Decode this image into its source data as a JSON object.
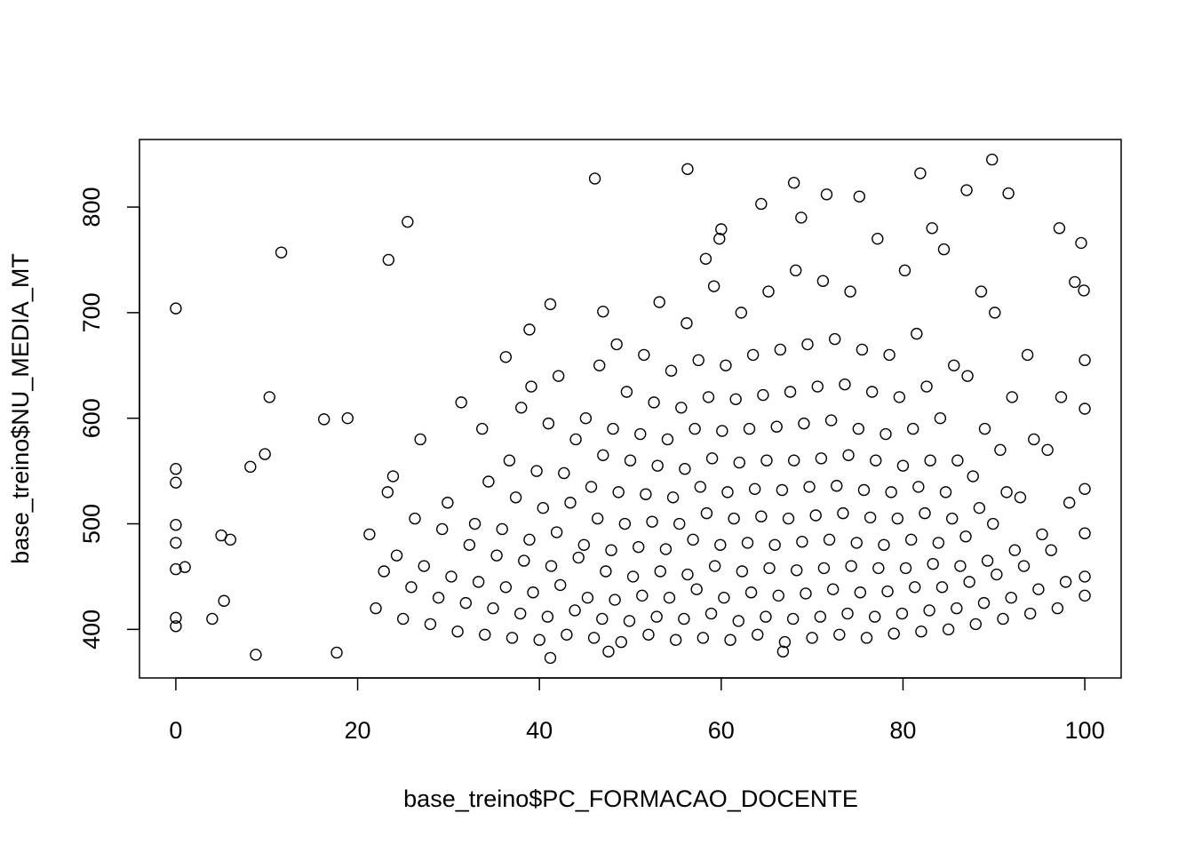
{
  "chart_data": {
    "type": "scatter",
    "x_label": "base_treino$PC_FORMACAO_DOCENTE",
    "y_label": "base_treino$NU_MEDIA_MT",
    "color": "#000000",
    "xlim": [
      -4,
      104
    ],
    "ylim": [
      354,
      864
    ],
    "xticks": [
      0,
      20,
      40,
      60,
      80,
      100
    ],
    "yticks": [
      400,
      500,
      600,
      700,
      800
    ],
    "x": [
      0,
      11.6,
      25.5,
      23.4,
      10.3,
      46.1,
      56.3,
      68,
      89.8,
      81.9,
      64.4,
      71.6,
      75.2,
      87,
      91.6,
      99.6,
      97.2,
      99.9,
      98.9,
      60,
      58.3,
      41.2,
      47,
      38.9,
      36.3,
      8.8,
      41.2,
      17.7,
      47.6,
      66.8,
      18.9,
      16.3,
      9.8,
      8.2,
      0,
      0,
      0,
      0,
      0,
      0,
      0,
      1,
      4,
      5.3,
      5,
      6,
      100,
      100,
      100,
      100,
      100,
      100,
      22,
      22.9,
      21.3,
      23.3,
      25,
      25.9,
      24.3,
      26.3,
      23.9,
      28,
      28.9,
      27.3,
      29.3,
      26.9,
      31,
      31.9,
      30.3,
      32.3,
      29.9,
      31.4,
      34,
      34.9,
      33.3,
      35.3,
      32.9,
      34.4,
      33.7,
      37,
      37.9,
      36.3,
      38.3,
      35.9,
      37.4,
      36.7,
      38,
      40,
      40.9,
      39.3,
      41.3,
      38.9,
      40.4,
      39.7,
      41,
      39.1,
      43,
      43.9,
      42.3,
      44.3,
      41.9,
      43.4,
      42.7,
      44,
      42.1,
      46,
      46.9,
      45.3,
      47.3,
      44.9,
      46.4,
      45.7,
      47,
      45.1,
      46.6,
      49,
      49.9,
      48.3,
      50.3,
      47.9,
      49.4,
      48.7,
      50,
      48.1,
      49.6,
      48.5,
      52,
      52.9,
      51.3,
      53.3,
      50.9,
      52.4,
      51.7,
      53,
      51.1,
      52.6,
      51.5,
      53.2,
      55,
      55.9,
      54.3,
      56.3,
      53.9,
      55.4,
      54.7,
      56,
      54.1,
      55.6,
      54.5,
      56.2,
      58,
      58.9,
      57.3,
      59.3,
      56.9,
      58.4,
      57.7,
      59,
      57.1,
      58.6,
      57.5,
      59.2,
      61,
      61.9,
      60.3,
      62.3,
      59.9,
      61.4,
      60.7,
      62,
      60.1,
      61.6,
      60.5,
      62.2,
      59.8,
      64,
      64.9,
      63.3,
      65.3,
      62.9,
      64.4,
      63.7,
      65,
      63.1,
      64.6,
      63.5,
      65.2,
      67,
      67.9,
      66.3,
      68.3,
      65.9,
      67.4,
      66.7,
      68,
      66.1,
      67.6,
      66.5,
      68.2,
      70,
      70.9,
      69.3,
      71.3,
      68.9,
      70.4,
      69.7,
      71,
      69.1,
      70.6,
      69.5,
      71.2,
      68.8,
      73,
      73.9,
      72.3,
      74.3,
      71.9,
      73.4,
      72.7,
      74,
      72.1,
      73.6,
      72.5,
      74.2,
      76,
      76.9,
      75.3,
      77.3,
      74.9,
      76.4,
      75.7,
      77,
      75.1,
      76.6,
      75.5,
      77.2,
      79,
      79.9,
      78.3,
      80.3,
      77.9,
      79.4,
      78.7,
      80,
      78.1,
      79.6,
      78.5,
      80.2,
      82,
      82.9,
      81.3,
      83.3,
      80.9,
      82.4,
      81.7,
      83,
      81.1,
      82.6,
      81.5,
      83.2,
      85,
      85.9,
      84.3,
      86.3,
      83.9,
      85.4,
      84.7,
      86,
      84.1,
      85.6,
      84.5,
      88,
      88.9,
      87.3,
      89.3,
      86.9,
      88.4,
      87.7,
      89,
      87.1,
      88.6,
      91,
      91.9,
      90.3,
      92.3,
      89.9,
      91.4,
      90.7,
      92,
      90.1,
      94,
      94.9,
      93.3,
      95.3,
      92.9,
      94.4,
      93.7,
      97,
      97.9,
      96.3,
      98.3,
      95.9,
      97.4
    ],
    "values": [
      704,
      757,
      786,
      750,
      620,
      827,
      836,
      823,
      845,
      832,
      803,
      812,
      810,
      816,
      813,
      766,
      780,
      721,
      729,
      779,
      751,
      708,
      701,
      684,
      658,
      376,
      373,
      378,
      379,
      379,
      600,
      599,
      566,
      554,
      552,
      539,
      499,
      482,
      457,
      411,
      403,
      459,
      410,
      427,
      489,
      485,
      655,
      609,
      533,
      491,
      432,
      450,
      420,
      455,
      490,
      530,
      410,
      440,
      470,
      505,
      545,
      405,
      430,
      460,
      495,
      580,
      398,
      425,
      450,
      480,
      520,
      615,
      395,
      420,
      445,
      470,
      500,
      540,
      590,
      392,
      415,
      440,
      465,
      495,
      525,
      560,
      610,
      390,
      412,
      435,
      460,
      485,
      515,
      550,
      595,
      630,
      395,
      418,
      442,
      468,
      492,
      520,
      548,
      580,
      640,
      392,
      410,
      430,
      455,
      480,
      505,
      535,
      565,
      600,
      650,
      388,
      408,
      428,
      450,
      475,
      500,
      530,
      560,
      590,
      625,
      670,
      395,
      412,
      432,
      455,
      478,
      502,
      528,
      555,
      585,
      615,
      660,
      710,
      390,
      410,
      430,
      452,
      476,
      500,
      525,
      552,
      580,
      610,
      645,
      690,
      392,
      415,
      438,
      460,
      485,
      510,
      535,
      562,
      590,
      620,
      655,
      725,
      390,
      408,
      430,
      455,
      480,
      505,
      530,
      558,
      588,
      618,
      650,
      700,
      770,
      395,
      412,
      435,
      458,
      482,
      507,
      533,
      560,
      590,
      622,
      660,
      720,
      388,
      410,
      432,
      456,
      480,
      505,
      532,
      560,
      592,
      625,
      665,
      740,
      392,
      412,
      434,
      458,
      483,
      508,
      535,
      562,
      595,
      630,
      670,
      730,
      790,
      395,
      415,
      438,
      460,
      485,
      510,
      536,
      565,
      598,
      632,
      675,
      720,
      392,
      412,
      435,
      458,
      482,
      506,
      532,
      560,
      590,
      625,
      665,
      770,
      396,
      415,
      436,
      458,
      480,
      505,
      530,
      555,
      585,
      620,
      660,
      740,
      398,
      418,
      440,
      462,
      485,
      510,
      535,
      560,
      590,
      630,
      680,
      780,
      400,
      420,
      440,
      460,
      482,
      505,
      530,
      560,
      600,
      650,
      760,
      405,
      425,
      445,
      465,
      488,
      515,
      545,
      590,
      640,
      720,
      410,
      430,
      452,
      475,
      500,
      530,
      570,
      620,
      700,
      415,
      438,
      460,
      490,
      525,
      580,
      660,
      420,
      445,
      475,
      520,
      570,
      620
    ]
  }
}
